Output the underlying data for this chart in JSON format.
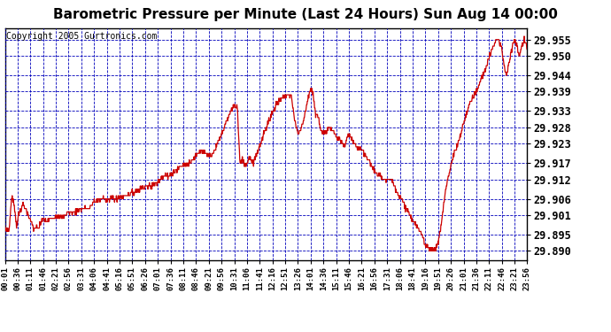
{
  "title": "Barometric Pressure per Minute (Last 24 Hours) Sun Aug 14 00:00",
  "copyright": "Copyright 2005 Gurtronics.com",
  "bg_color": "#ffffff",
  "plot_bg_color": "#ffffff",
  "line_color": "#cc0000",
  "grid_color": "#0000bb",
  "axis_color": "#000000",
  "text_color": "#000000",
  "yticks": [
    29.89,
    29.895,
    29.901,
    29.906,
    29.912,
    29.917,
    29.923,
    29.928,
    29.933,
    29.939,
    29.944,
    29.95,
    29.955
  ],
  "ymin": 29.887,
  "ymax": 29.9585,
  "xlabel_fontsize": 6.5,
  "ylabel_fontsize": 8.5,
  "title_fontsize": 11,
  "copyright_fontsize": 7,
  "xtick_labels": [
    "00:01",
    "00:36",
    "01:11",
    "01:46",
    "02:21",
    "02:56",
    "03:31",
    "04:06",
    "04:41",
    "05:16",
    "05:51",
    "06:26",
    "07:01",
    "07:36",
    "08:11",
    "08:46",
    "09:21",
    "09:56",
    "10:31",
    "11:06",
    "11:41",
    "12:16",
    "12:51",
    "13:26",
    "14:01",
    "14:36",
    "15:11",
    "15:46",
    "16:21",
    "16:56",
    "17:31",
    "18:06",
    "18:41",
    "19:16",
    "19:51",
    "20:26",
    "21:01",
    "21:36",
    "22:11",
    "22:46",
    "23:21",
    "23:56"
  ],
  "waypoints": [
    [
      0.0,
      29.897
    ],
    [
      0.008,
      29.896
    ],
    [
      0.013,
      29.907
    ],
    [
      0.018,
      29.904
    ],
    [
      0.022,
      29.898
    ],
    [
      0.028,
      29.902
    ],
    [
      0.035,
      29.904
    ],
    [
      0.04,
      29.903
    ],
    [
      0.048,
      29.9
    ],
    [
      0.055,
      29.897
    ],
    [
      0.065,
      29.897
    ],
    [
      0.072,
      29.9
    ],
    [
      0.08,
      29.899
    ],
    [
      0.09,
      29.9
    ],
    [
      0.1,
      29.901
    ],
    [
      0.11,
      29.9
    ],
    [
      0.12,
      29.902
    ],
    [
      0.135,
      29.902
    ],
    [
      0.148,
      29.903
    ],
    [
      0.162,
      29.903
    ],
    [
      0.17,
      29.905
    ],
    [
      0.185,
      29.906
    ],
    [
      0.2,
      29.906
    ],
    [
      0.215,
      29.906
    ],
    [
      0.23,
      29.907
    ],
    [
      0.245,
      29.908
    ],
    [
      0.258,
      29.909
    ],
    [
      0.27,
      29.91
    ],
    [
      0.282,
      29.91
    ],
    [
      0.295,
      29.912
    ],
    [
      0.31,
      29.913
    ],
    [
      0.322,
      29.914
    ],
    [
      0.338,
      29.916
    ],
    [
      0.352,
      29.917
    ],
    [
      0.365,
      29.919
    ],
    [
      0.375,
      29.921
    ],
    [
      0.385,
      29.92
    ],
    [
      0.395,
      29.919
    ],
    [
      0.405,
      29.922
    ],
    [
      0.415,
      29.926
    ],
    [
      0.425,
      29.93
    ],
    [
      0.432,
      29.933
    ],
    [
      0.44,
      29.935
    ],
    [
      0.445,
      29.934
    ],
    [
      0.45,
      29.917
    ],
    [
      0.455,
      29.918
    ],
    [
      0.46,
      29.916
    ],
    [
      0.468,
      29.919
    ],
    [
      0.475,
      29.917
    ],
    [
      0.482,
      29.92
    ],
    [
      0.49,
      29.923
    ],
    [
      0.5,
      29.928
    ],
    [
      0.51,
      29.932
    ],
    [
      0.52,
      29.935
    ],
    [
      0.53,
      29.937
    ],
    [
      0.54,
      29.938
    ],
    [
      0.548,
      29.938
    ],
    [
      0.555,
      29.93
    ],
    [
      0.562,
      29.926
    ],
    [
      0.57,
      29.929
    ],
    [
      0.578,
      29.935
    ],
    [
      0.585,
      29.94
    ],
    [
      0.59,
      29.938
    ],
    [
      0.595,
      29.932
    ],
    [
      0.6,
      29.931
    ],
    [
      0.605,
      29.927
    ],
    [
      0.612,
      29.926
    ],
    [
      0.62,
      29.928
    ],
    [
      0.628,
      29.927
    ],
    [
      0.635,
      29.925
    ],
    [
      0.643,
      29.924
    ],
    [
      0.65,
      29.922
    ],
    [
      0.658,
      29.926
    ],
    [
      0.665,
      29.924
    ],
    [
      0.673,
      29.922
    ],
    [
      0.682,
      29.921
    ],
    [
      0.692,
      29.919
    ],
    [
      0.702,
      29.916
    ],
    [
      0.715,
      29.913
    ],
    [
      0.728,
      29.912
    ],
    [
      0.74,
      29.912
    ],
    [
      0.752,
      29.908
    ],
    [
      0.762,
      29.905
    ],
    [
      0.772,
      29.902
    ],
    [
      0.782,
      29.899
    ],
    [
      0.79,
      29.897
    ],
    [
      0.798,
      29.895
    ],
    [
      0.805,
      29.892
    ],
    [
      0.813,
      29.891
    ],
    [
      0.82,
      29.89
    ],
    [
      0.825,
      29.891
    ],
    [
      0.83,
      29.893
    ],
    [
      0.835,
      29.898
    ],
    [
      0.84,
      29.904
    ],
    [
      0.845,
      29.91
    ],
    [
      0.852,
      29.915
    ],
    [
      0.86,
      29.92
    ],
    [
      0.868,
      29.923
    ],
    [
      0.876,
      29.928
    ],
    [
      0.885,
      29.933
    ],
    [
      0.894,
      29.937
    ],
    [
      0.903,
      29.939
    ],
    [
      0.912,
      29.943
    ],
    [
      0.92,
      29.946
    ],
    [
      0.928,
      29.95
    ],
    [
      0.935,
      29.953
    ],
    [
      0.94,
      29.955
    ],
    [
      0.945,
      29.955
    ],
    [
      0.95,
      29.953
    ],
    [
      0.955,
      29.948
    ],
    [
      0.96,
      29.944
    ],
    [
      0.965,
      29.948
    ],
    [
      0.97,
      29.952
    ],
    [
      0.975,
      29.955
    ],
    [
      0.98,
      29.953
    ],
    [
      0.985,
      29.95
    ],
    [
      0.99,
      29.953
    ],
    [
      0.995,
      29.955
    ],
    [
      1.0,
      29.952
    ]
  ]
}
